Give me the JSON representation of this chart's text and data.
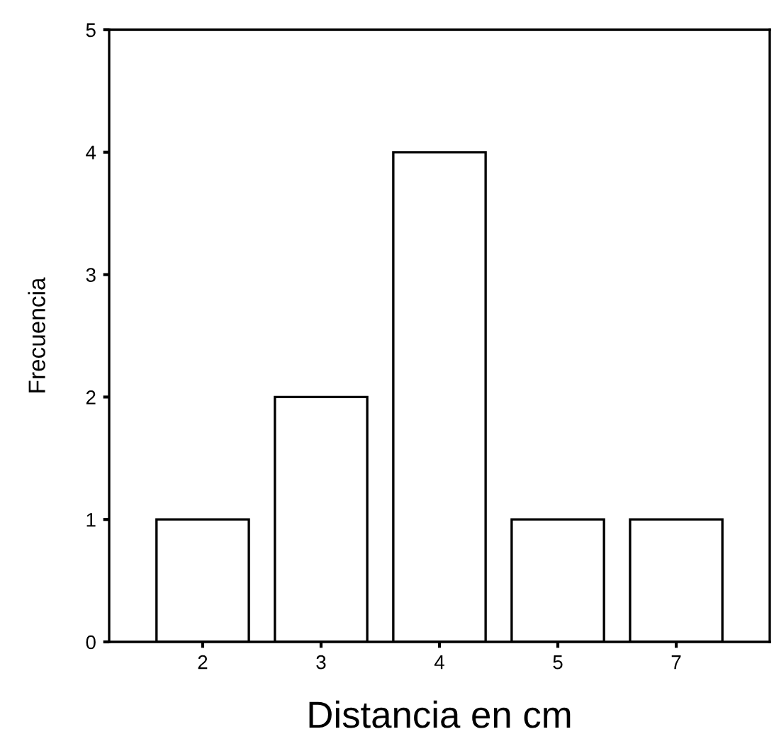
{
  "chart_data": {
    "type": "bar",
    "xlabel": "Distancia en cm",
    "ylabel": "Frecuencia",
    "categories": [
      "2",
      "3",
      "4",
      "5",
      "7"
    ],
    "values": [
      1,
      2,
      4,
      1,
      1
    ],
    "color": "#ffffff",
    "ylim": [
      0,
      5
    ],
    "yticks": [
      0,
      1,
      2,
      3,
      4,
      5
    ],
    "grid": false
  }
}
